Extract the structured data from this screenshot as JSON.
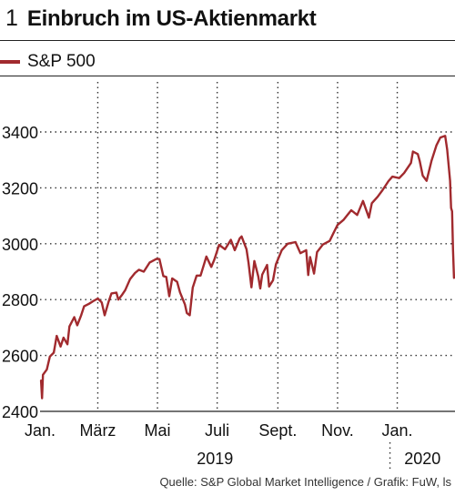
{
  "header": {
    "number": "1",
    "title": "Einbruch im US-Aktienmarkt"
  },
  "source": "Quelle: S&P Global Market Intelligence / Grafik: FuW, ls",
  "colors": {
    "series": "#a12a2e",
    "grid": "#333333",
    "axis": "#222222"
  },
  "chart_data": {
    "type": "line",
    "title": "Einbruch im US-Aktienmarkt",
    "xlabel": "",
    "ylabel": "",
    "ylim": [
      2400,
      3450
    ],
    "yticks": [
      2400,
      2600,
      2800,
      3000,
      3200,
      3400
    ],
    "xlim": [
      "2019-01-01",
      "2020-02-29"
    ],
    "x_ticks": [
      {
        "date": "2019-01-01",
        "label": "Jan."
      },
      {
        "date": "2019-03-01",
        "label": "März"
      },
      {
        "date": "2019-05-01",
        "label": "Mai"
      },
      {
        "date": "2019-07-01",
        "label": "Juli"
      },
      {
        "date": "2019-09-01",
        "label": "Sept."
      },
      {
        "date": "2019-11-01",
        "label": "Nov."
      },
      {
        "date": "2020-01-01",
        "label": "Jan."
      }
    ],
    "year_labels": [
      {
        "label": "2019",
        "from": "2019-01-01",
        "to": "2020-01-01"
      },
      {
        "label": "2020",
        "from": "2020-01-01",
        "to": "2020-02-29"
      }
    ],
    "grid": true,
    "legend": "top-left",
    "series": [
      {
        "name": "S&P 500",
        "points": [
          [
            "2019-01-02",
            2510
          ],
          [
            "2019-01-03",
            2447
          ],
          [
            "2019-01-04",
            2531
          ],
          [
            "2019-01-08",
            2550
          ],
          [
            "2019-01-11",
            2596
          ],
          [
            "2019-01-15",
            2610
          ],
          [
            "2019-01-18",
            2670
          ],
          [
            "2019-01-22",
            2632
          ],
          [
            "2019-01-25",
            2664
          ],
          [
            "2019-01-29",
            2640
          ],
          [
            "2019-01-31",
            2704
          ],
          [
            "2019-02-05",
            2737
          ],
          [
            "2019-02-08",
            2708
          ],
          [
            "2019-02-12",
            2744
          ],
          [
            "2019-02-15",
            2776
          ],
          [
            "2019-02-20",
            2785
          ],
          [
            "2019-02-25",
            2796
          ],
          [
            "2019-03-01",
            2804
          ],
          [
            "2019-03-05",
            2790
          ],
          [
            "2019-03-08",
            2744
          ],
          [
            "2019-03-12",
            2792
          ],
          [
            "2019-03-15",
            2822
          ],
          [
            "2019-03-20",
            2825
          ],
          [
            "2019-03-22",
            2800
          ],
          [
            "2019-03-26",
            2818
          ],
          [
            "2019-03-29",
            2834
          ],
          [
            "2019-04-03",
            2873
          ],
          [
            "2019-04-08",
            2895
          ],
          [
            "2019-04-12",
            2907
          ],
          [
            "2019-04-17",
            2900
          ],
          [
            "2019-04-23",
            2933
          ],
          [
            "2019-04-30",
            2946
          ],
          [
            "2019-05-03",
            2945
          ],
          [
            "2019-05-07",
            2884
          ],
          [
            "2019-05-10",
            2881
          ],
          [
            "2019-05-13",
            2812
          ],
          [
            "2019-05-16",
            2876
          ],
          [
            "2019-05-21",
            2864
          ],
          [
            "2019-05-24",
            2826
          ],
          [
            "2019-05-29",
            2783
          ],
          [
            "2019-05-31",
            2752
          ],
          [
            "2019-06-03",
            2744
          ],
          [
            "2019-06-06",
            2843
          ],
          [
            "2019-06-10",
            2886
          ],
          [
            "2019-06-14",
            2886
          ],
          [
            "2019-06-20",
            2954
          ],
          [
            "2019-06-25",
            2917
          ],
          [
            "2019-06-28",
            2942
          ],
          [
            "2019-07-03",
            2996
          ],
          [
            "2019-07-09",
            2980
          ],
          [
            "2019-07-15",
            3014
          ],
          [
            "2019-07-19",
            2977
          ],
          [
            "2019-07-24",
            3019
          ],
          [
            "2019-07-26",
            3026
          ],
          [
            "2019-07-31",
            2980
          ],
          [
            "2019-08-02",
            2932
          ],
          [
            "2019-08-05",
            2844
          ],
          [
            "2019-08-08",
            2938
          ],
          [
            "2019-08-12",
            2883
          ],
          [
            "2019-08-14",
            2840
          ],
          [
            "2019-08-16",
            2889
          ],
          [
            "2019-08-21",
            2924
          ],
          [
            "2019-08-23",
            2847
          ],
          [
            "2019-08-27",
            2869
          ],
          [
            "2019-08-30",
            2926
          ],
          [
            "2019-09-05",
            2977
          ],
          [
            "2019-09-11",
            3000
          ],
          [
            "2019-09-19",
            3006
          ],
          [
            "2019-09-24",
            2966
          ],
          [
            "2019-09-30",
            2977
          ],
          [
            "2019-10-02",
            2888
          ],
          [
            "2019-10-04",
            2952
          ],
          [
            "2019-10-08",
            2893
          ],
          [
            "2019-10-11",
            2970
          ],
          [
            "2019-10-17",
            2997
          ],
          [
            "2019-10-24",
            3010
          ],
          [
            "2019-10-28",
            3039
          ],
          [
            "2019-11-01",
            3067
          ],
          [
            "2019-11-07",
            3085
          ],
          [
            "2019-11-15",
            3120
          ],
          [
            "2019-11-21",
            3103
          ],
          [
            "2019-11-27",
            3153
          ],
          [
            "2019-12-03",
            3093
          ],
          [
            "2019-12-06",
            3145
          ],
          [
            "2019-12-12",
            3168
          ],
          [
            "2019-12-17",
            3192
          ],
          [
            "2019-12-23",
            3224
          ],
          [
            "2019-12-27",
            3240
          ],
          [
            "2020-01-03",
            3235
          ],
          [
            "2020-01-08",
            3253
          ],
          [
            "2020-01-15",
            3289
          ],
          [
            "2020-01-17",
            3330
          ],
          [
            "2020-01-22",
            3321
          ],
          [
            "2020-01-24",
            3295
          ],
          [
            "2020-01-27",
            3244
          ],
          [
            "2020-01-31",
            3225
          ],
          [
            "2020-02-05",
            3297
          ],
          [
            "2020-02-10",
            3352
          ],
          [
            "2020-02-14",
            3380
          ],
          [
            "2020-02-19",
            3386
          ],
          [
            "2020-02-21",
            3337
          ],
          [
            "2020-02-24",
            3225
          ],
          [
            "2020-02-25",
            3128
          ],
          [
            "2020-02-26",
            3116
          ],
          [
            "2020-02-27",
            2979
          ],
          [
            "2020-02-28",
            2878
          ]
        ]
      }
    ]
  }
}
